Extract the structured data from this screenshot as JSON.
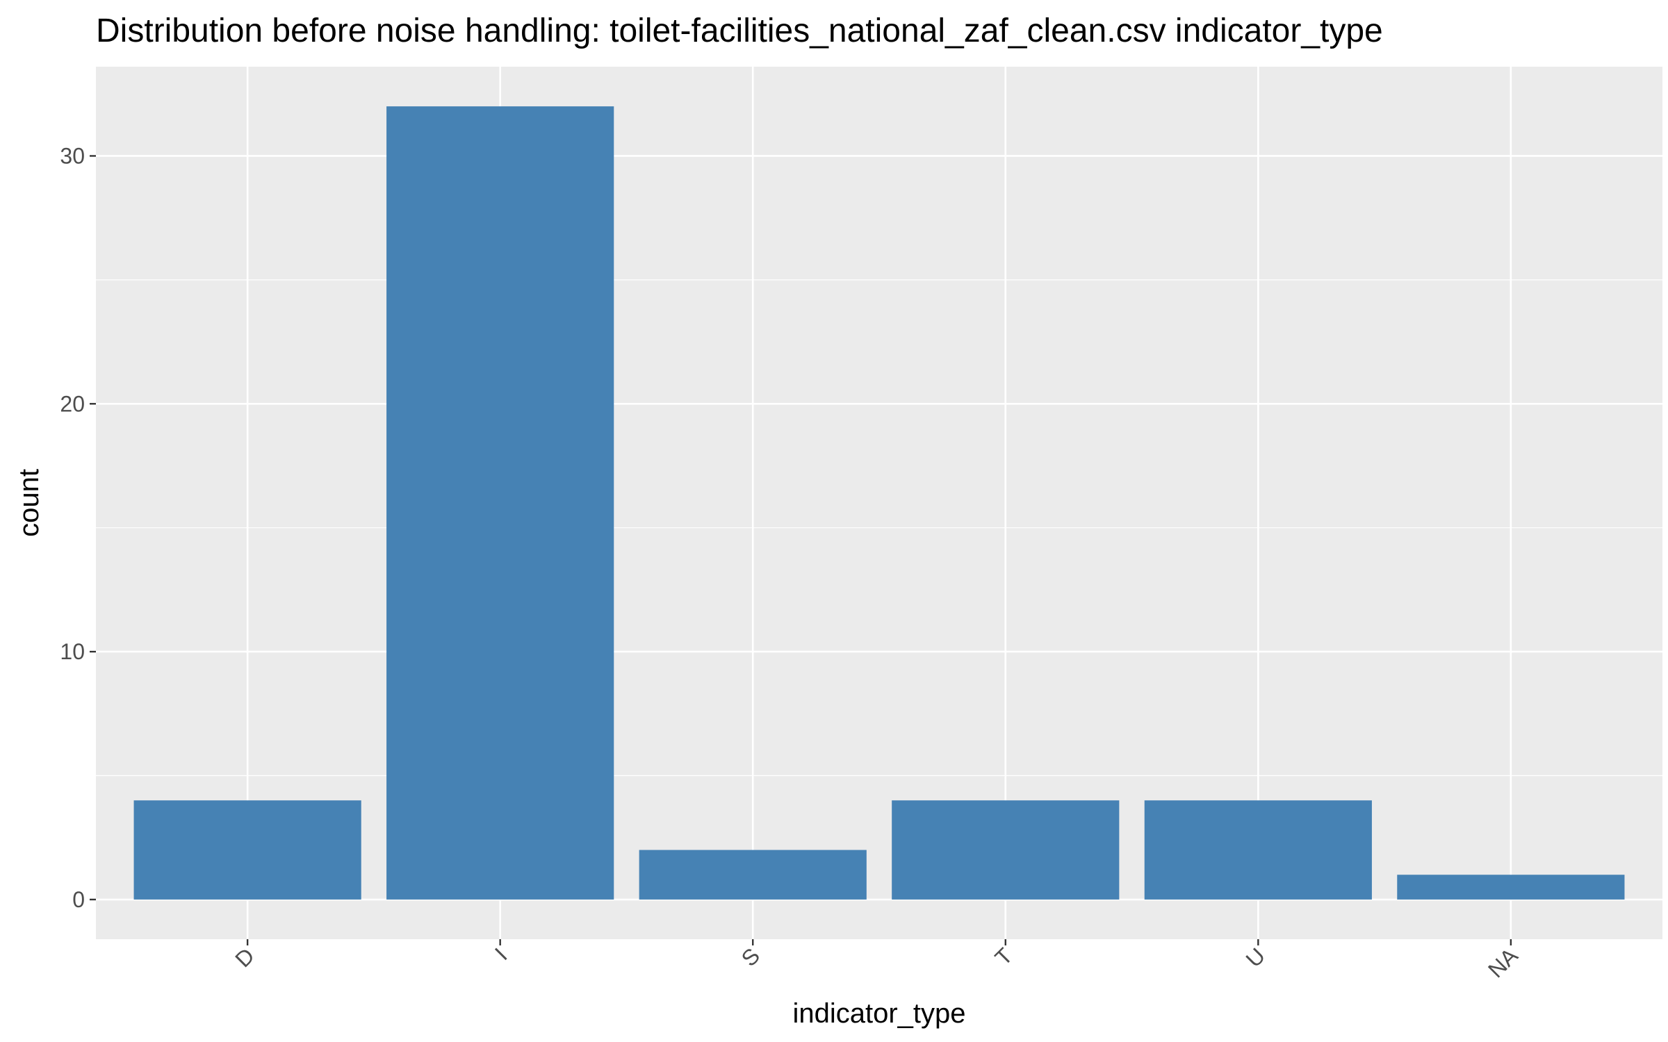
{
  "chart_data": {
    "type": "bar",
    "title": "Distribution before noise handling: toilet-facilities_national_zaf_clean.csv indicator_type",
    "xlabel": "indicator_type",
    "ylabel": "count",
    "categories": [
      "D",
      "I",
      "S",
      "T",
      "U",
      "NA"
    ],
    "values": [
      4,
      32,
      2,
      4,
      4,
      1
    ],
    "ylim": [
      -1.6,
      33.6
    ],
    "yticks": [
      0,
      10,
      20,
      30
    ],
    "grid": true,
    "legend": "none",
    "colors": {
      "bar": "#4682B4",
      "panel": "#EBEBEB",
      "grid": "#FFFFFF",
      "tick": "#333333"
    }
  }
}
